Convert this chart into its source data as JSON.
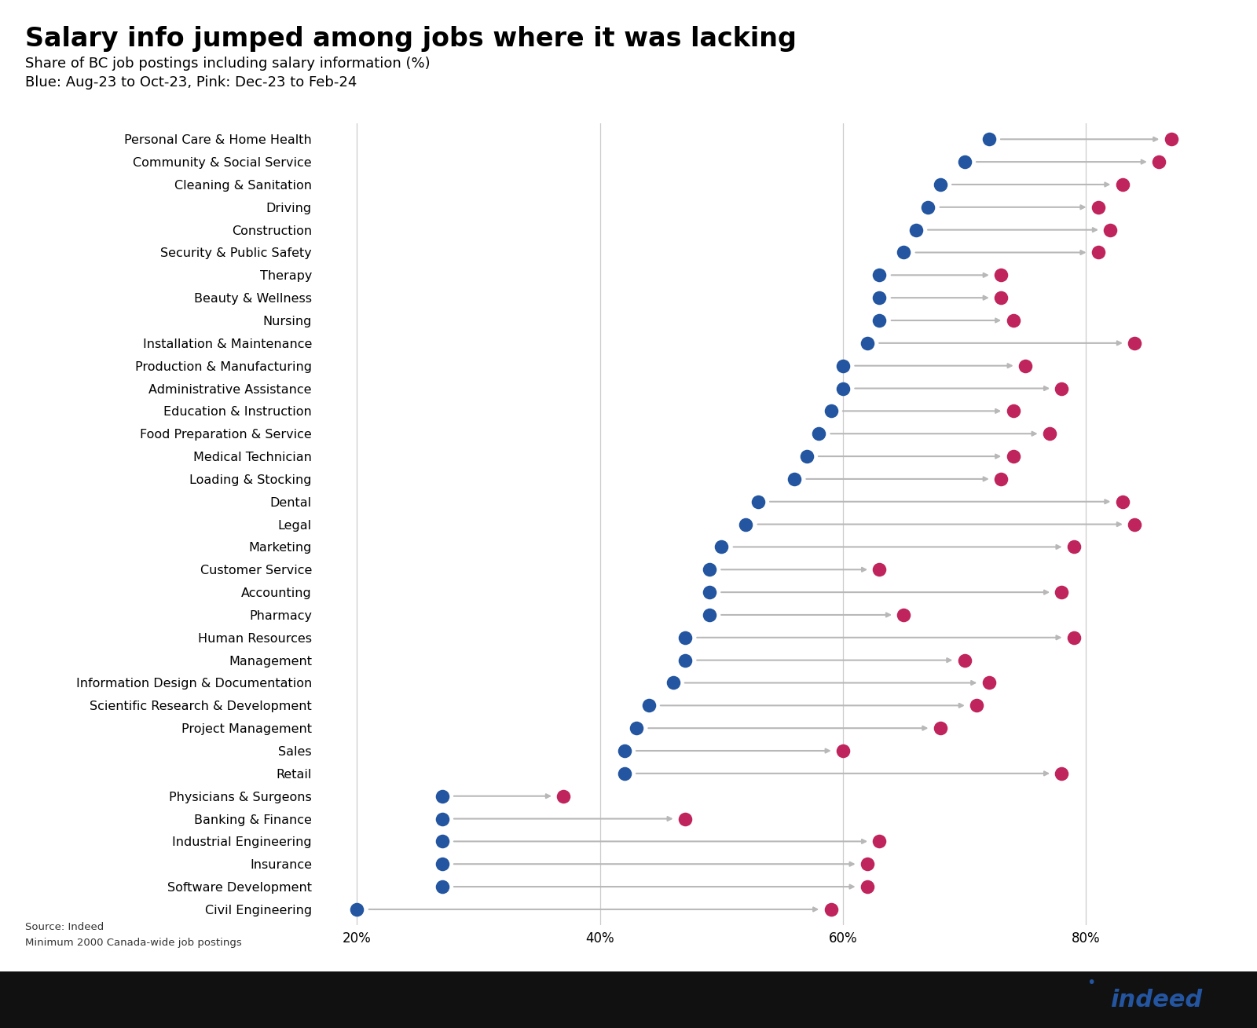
{
  "title": "Salary info jumped among jobs where it was lacking",
  "subtitle1": "Share of BC job postings including salary information (%)",
  "subtitle2": "Blue: Aug-23 to Oct-23, Pink: Dec-23 to Feb-24",
  "source_line1": "Source: Indeed",
  "source_line2": "Minimum 2000 Canada-wide job postings",
  "categories": [
    "Personal Care & Home Health",
    "Community & Social Service",
    "Cleaning & Sanitation",
    "Driving",
    "Construction",
    "Security & Public Safety",
    "Therapy",
    "Beauty & Wellness",
    "Nursing",
    "Installation & Maintenance",
    "Production & Manufacturing",
    "Administrative Assistance",
    "Education & Instruction",
    "Food Preparation & Service",
    "Medical Technician",
    "Loading & Stocking",
    "Dental",
    "Legal",
    "Marketing",
    "Customer Service",
    "Accounting",
    "Pharmacy",
    "Human Resources",
    "Management",
    "Information Design & Documentation",
    "Scientific Research & Development",
    "Project Management",
    "Sales",
    "Retail",
    "Physicians & Surgeons",
    "Banking & Finance",
    "Industrial Engineering",
    "Insurance",
    "Software Development",
    "Civil Engineering"
  ],
  "blue_values": [
    72,
    70,
    68,
    67,
    66,
    65,
    63,
    63,
    63,
    62,
    60,
    60,
    59,
    58,
    57,
    56,
    53,
    52,
    50,
    49,
    49,
    49,
    47,
    47,
    46,
    44,
    43,
    42,
    42,
    27,
    27,
    27,
    27,
    27,
    20
  ],
  "pink_values": [
    87,
    86,
    83,
    81,
    82,
    81,
    73,
    73,
    74,
    84,
    75,
    78,
    74,
    77,
    74,
    73,
    83,
    84,
    79,
    63,
    78,
    65,
    79,
    70,
    72,
    71,
    68,
    60,
    78,
    37,
    47,
    63,
    62,
    62,
    59
  ],
  "blue_color": "#2355a0",
  "pink_color": "#c0245c",
  "arrow_color": "#b8b8b8",
  "background_color": "#ffffff",
  "footer_color": "#1a1a1a",
  "xlim": [
    17,
    92
  ],
  "xtick_vals": [
    20,
    40,
    60,
    80
  ],
  "xtick_labels": [
    "20%",
    "40%",
    "60%",
    "80%"
  ],
  "title_fontsize": 24,
  "subtitle_fontsize": 13,
  "label_fontsize": 11.5,
  "tick_fontsize": 12
}
